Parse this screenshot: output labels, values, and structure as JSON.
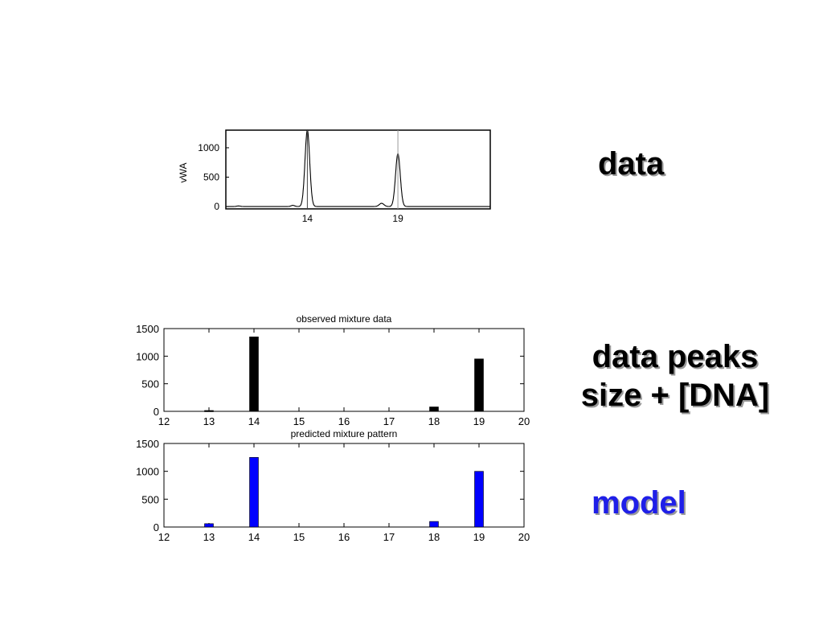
{
  "labels": {
    "data": "data",
    "peaks_line1": "data peaks",
    "peaks_line2": "size + [DNA]",
    "model": "model"
  },
  "chart_data": [
    {
      "type": "line",
      "ylabel": "vWA",
      "yticks": [
        0,
        500,
        1000
      ],
      "xticks": [
        14,
        19
      ],
      "xlim": [
        9.5,
        24.1
      ],
      "ylim": [
        -40,
        1300
      ],
      "peaks": [
        {
          "x": 14.0,
          "height": 1300,
          "width": 0.13
        },
        {
          "x": 19.0,
          "height": 900,
          "width": 0.13
        },
        {
          "x": 18.1,
          "height": 55,
          "width": 0.13
        },
        {
          "x": 13.2,
          "height": 20,
          "width": 0.1
        },
        {
          "x": 10.2,
          "height": 10,
          "width": 0.1
        }
      ],
      "grid": false
    },
    {
      "type": "bar",
      "title": "observed mixture data",
      "x": [
        13,
        14,
        18,
        19
      ],
      "values": [
        15,
        1350,
        80,
        950
      ],
      "xticks": [
        12,
        13,
        14,
        15,
        16,
        17,
        18,
        19,
        20
      ],
      "yticks": [
        0,
        500,
        1000,
        1500
      ],
      "xlim": [
        12,
        20
      ],
      "ylim": [
        0,
        1500
      ],
      "color": "#000000",
      "grid": false
    },
    {
      "type": "bar",
      "title": "predicted mixture pattern",
      "x": [
        13,
        14,
        18,
        19
      ],
      "values": [
        60,
        1250,
        100,
        1000
      ],
      "xticks": [
        12,
        13,
        14,
        15,
        16,
        17,
        18,
        19,
        20
      ],
      "yticks": [
        0,
        500,
        1000,
        1500
      ],
      "xlim": [
        12,
        20
      ],
      "ylim": [
        0,
        1500
      ],
      "color": "#0000ff",
      "grid": false
    }
  ]
}
